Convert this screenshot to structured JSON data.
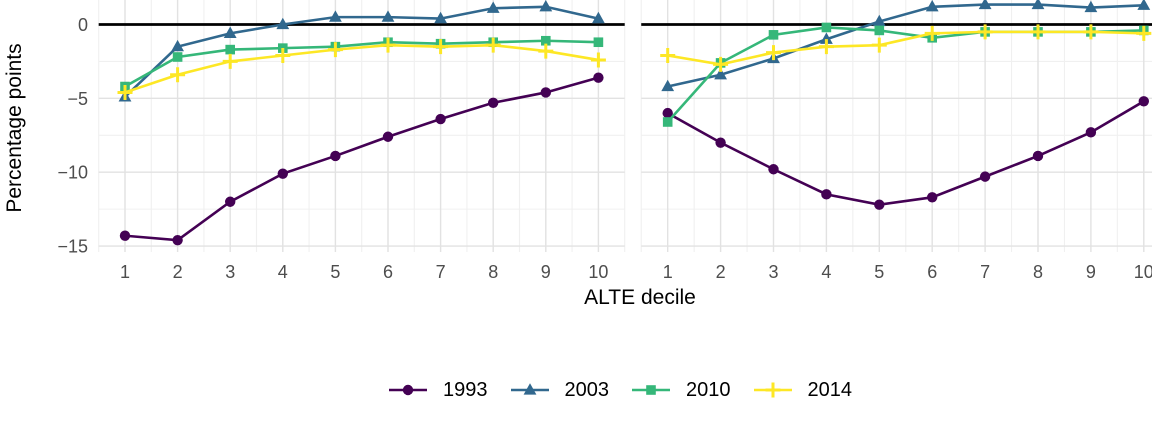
{
  "chart_data": {
    "type": "line",
    "title": "",
    "xlabel": "ALTE decile",
    "ylabel": "Percentage points",
    "x": [
      1,
      2,
      3,
      4,
      5,
      6,
      7,
      8,
      9,
      10
    ],
    "ylim": [
      -15.4,
      1.66
    ],
    "y_major_ticks": [
      0,
      -5,
      -10,
      -15
    ],
    "y_tick_labels": [
      "0",
      "−5",
      "−10",
      "−15"
    ],
    "y_minor_ticks": [
      -2.5,
      -7.5,
      -12.5
    ],
    "grid": "major+minor",
    "zero_line": true,
    "zero_line_color": "#000000",
    "legend_position": "bottom",
    "series_meta": [
      {
        "name": "1993",
        "color": "#440154",
        "marker": "circle"
      },
      {
        "name": "2003",
        "color": "#31688E",
        "marker": "triangle"
      },
      {
        "name": "2010",
        "color": "#35B779",
        "marker": "square"
      },
      {
        "name": "2014",
        "color": "#FDE725",
        "marker": "plus"
      }
    ],
    "panels": [
      {
        "name": "left",
        "series": [
          {
            "name": "1993",
            "values": [
              -14.3,
              -14.6,
              -12.0,
              -10.1,
              -8.9,
              -7.6,
              -6.4,
              -5.3,
              -4.6,
              -3.6
            ]
          },
          {
            "name": "2003",
            "values": [
              -4.9,
              -1.5,
              -0.6,
              0.0,
              0.5,
              0.5,
              0.4,
              1.1,
              1.2,
              0.4
            ]
          },
          {
            "name": "2010",
            "values": [
              -4.2,
              -2.2,
              -1.7,
              -1.6,
              -1.5,
              -1.2,
              -1.3,
              -1.2,
              -1.1,
              -1.2
            ]
          },
          {
            "name": "2014",
            "values": [
              -4.6,
              -3.4,
              -2.5,
              -2.1,
              -1.7,
              -1.4,
              -1.5,
              -1.4,
              -1.8,
              -2.4
            ]
          }
        ]
      },
      {
        "name": "right",
        "series": [
          {
            "name": "1993",
            "values": [
              -6.0,
              -8.0,
              -9.8,
              -11.5,
              -12.2,
              -11.7,
              -10.3,
              -8.9,
              -7.3,
              -5.2
            ]
          },
          {
            "name": "2003",
            "values": [
              -4.2,
              -3.4,
              -2.3,
              -1.0,
              0.2,
              1.2,
              1.35,
              1.35,
              1.15,
              1.3
            ]
          },
          {
            "name": "2010",
            "values": [
              -6.6,
              -2.6,
              -0.7,
              -0.2,
              -0.4,
              -0.9,
              -0.5,
              -0.5,
              -0.5,
              -0.4
            ]
          },
          {
            "name": "2014",
            "values": [
              -2.1,
              -2.7,
              -1.9,
              -1.5,
              -1.4,
              -0.6,
              -0.5,
              -0.5,
              -0.5,
              -0.6
            ]
          }
        ]
      }
    ]
  }
}
